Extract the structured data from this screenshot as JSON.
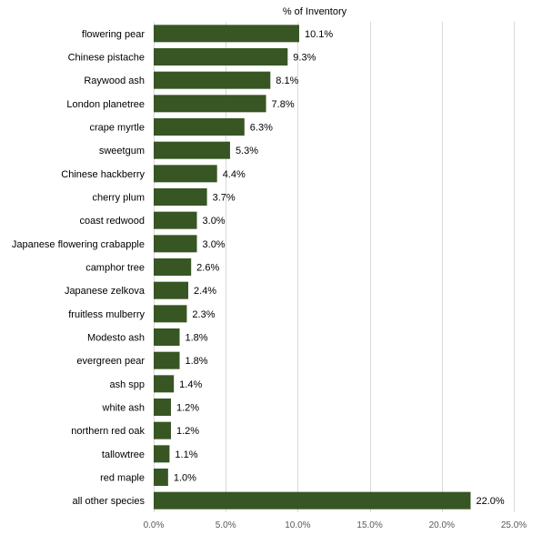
{
  "chart_data": {
    "type": "bar",
    "orientation": "horizontal",
    "title": "% of Inventory",
    "categories": [
      "flowering pear",
      "Chinese pistache",
      "Raywood ash",
      "London planetree",
      "crape myrtle",
      "sweetgum",
      "Chinese hackberry",
      "cherry plum",
      "coast redwood",
      "Japanese flowering crabapple",
      "camphor tree",
      "Japanese zelkova",
      "fruitless mulberry",
      "Modesto ash",
      "evergreen pear",
      "ash spp",
      "white ash",
      "northern red oak",
      "tallowtree",
      "red maple",
      "all other species"
    ],
    "values": [
      10.1,
      9.3,
      8.1,
      7.8,
      6.3,
      5.3,
      4.4,
      3.7,
      3.0,
      3.0,
      2.6,
      2.4,
      2.3,
      1.8,
      1.8,
      1.4,
      1.2,
      1.2,
      1.1,
      1.0,
      22.0
    ],
    "data_labels": [
      "10.1%",
      "9.3%",
      "8.1%",
      "7.8%",
      "6.3%",
      "5.3%",
      "4.4%",
      "3.7%",
      "3.0%",
      "3.0%",
      "2.6%",
      "2.4%",
      "2.3%",
      "1.8%",
      "1.8%",
      "1.4%",
      "1.2%",
      "1.2%",
      "1.1%",
      "1.0%",
      "22.0%"
    ],
    "xlim": [
      0,
      25
    ],
    "xticks": [
      0,
      5,
      10,
      15,
      20,
      25
    ],
    "xtick_labels": [
      "0.0%",
      "5.0%",
      "10.0%",
      "15.0%",
      "20.0%",
      "25.0%"
    ],
    "grid": true,
    "grid_axis": "x",
    "legend": "none",
    "bar_color": "#375623",
    "grid_color": "#d9d9d9",
    "text_color": "#000000"
  }
}
